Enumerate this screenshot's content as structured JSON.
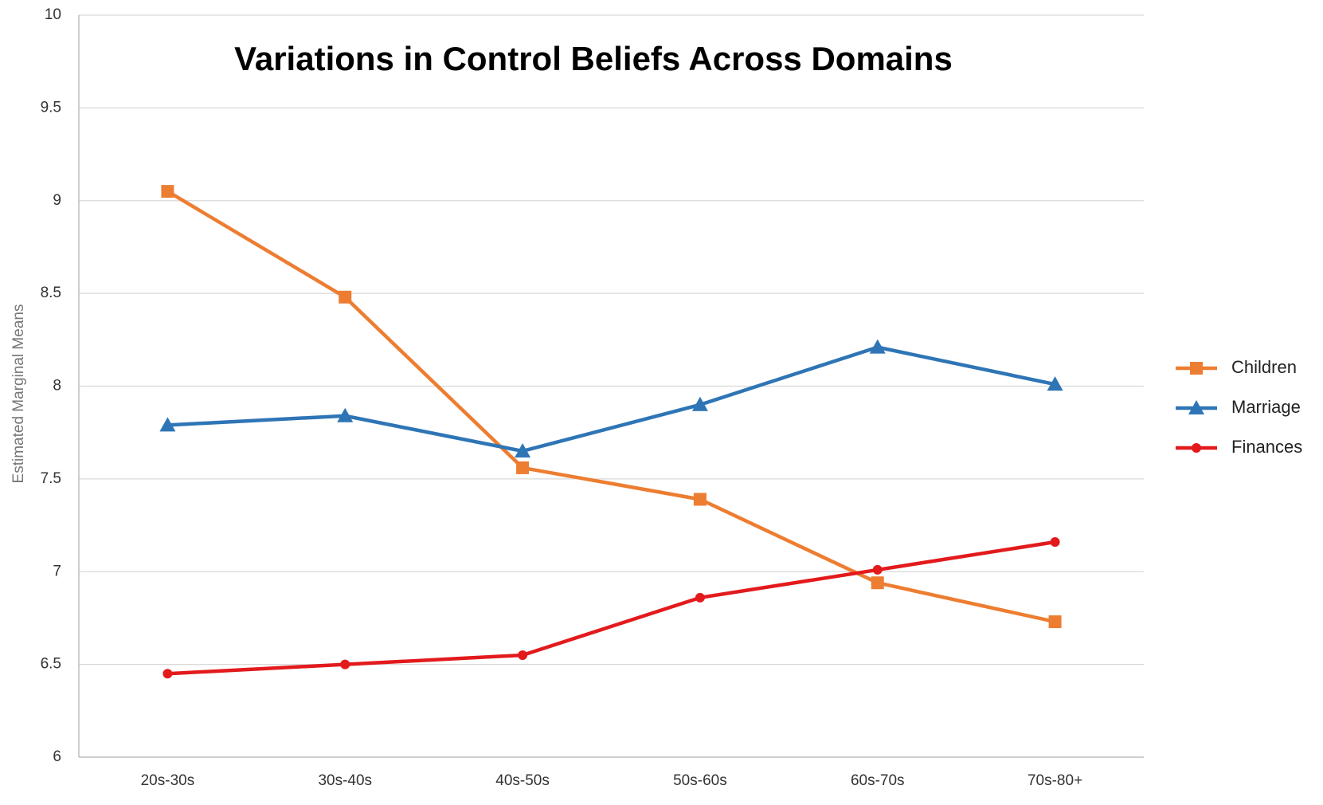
{
  "chart_data": {
    "type": "line",
    "title": "Variations in Control Beliefs Across Domains",
    "y_label": "Estimated Marginal Means",
    "categories": [
      "20s-30s",
      "30s-40s",
      "40s-50s",
      "50s-60s",
      "60s-70s",
      "70s-80+"
    ],
    "series": [
      {
        "name": "Children",
        "color": "#ed7d31",
        "marker": "square",
        "values": [
          9.05,
          8.48,
          7.56,
          7.39,
          6.94,
          6.73
        ]
      },
      {
        "name": "Marriage",
        "color": "#2e75b6",
        "marker": "triangle",
        "values": [
          7.79,
          7.84,
          7.65,
          7.9,
          8.21,
          8.01
        ]
      },
      {
        "name": "Finances",
        "color": "#e31a1c",
        "marker": "circle",
        "values": [
          6.45,
          6.5,
          6.55,
          6.86,
          7.01,
          7.16
        ]
      }
    ],
    "ylim": [
      6,
      10
    ],
    "yticks": [
      6,
      6.5,
      7,
      7.5,
      8,
      8.5,
      9,
      9.5,
      10
    ],
    "grid": true,
    "legend": "right"
  }
}
